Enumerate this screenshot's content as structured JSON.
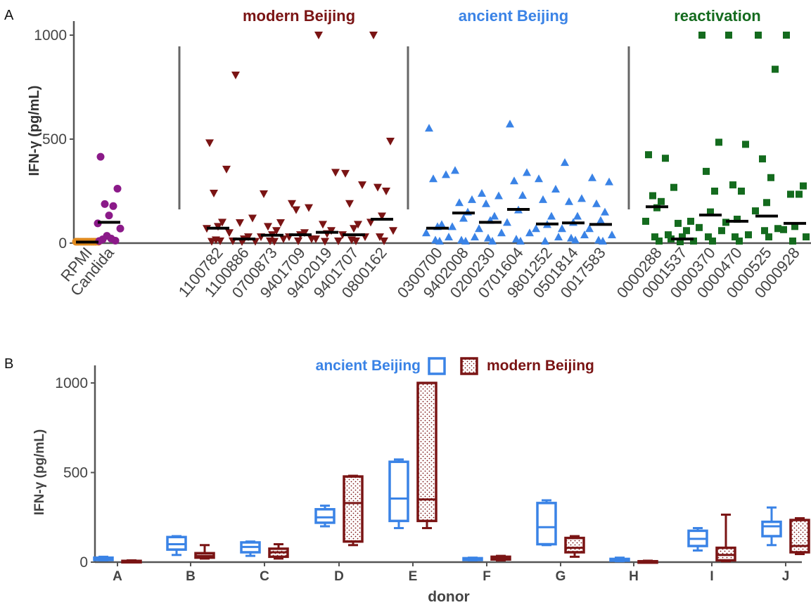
{
  "panels": {
    "a": {
      "letter": "A",
      "chart_data": {
        "type": "scatter",
        "ylabel": "IFN-γ (pg/mL)",
        "ylim": [
          0,
          1050
        ],
        "yticks": [
          0,
          500,
          1000
        ],
        "groups": [
          {
            "title": "",
            "color": "#e08a1e",
            "marker": "circle",
            "strains": [
              {
                "label": "RPMI",
                "values": [
                  5,
                  5,
                  5,
                  5,
                  5,
                  5,
                  5,
                  5,
                  5,
                  5,
                  5,
                  5
                ],
                "median": 5
              }
            ]
          },
          {
            "title": "",
            "color": "#8b1a89",
            "marker": "circle",
            "strains": [
              {
                "label": "Candida",
                "values": [
                  415,
                  262,
                  188,
                  178,
                  133,
                  95,
                  70,
                  35,
                  22,
                  18,
                  12,
                  10
                ],
                "median": 100
              }
            ]
          },
          {
            "title": "modern Beijing",
            "color": "#7a1414",
            "marker": "triangle-down",
            "strains": [
              {
                "label": "1100782",
                "values": [
                  482,
                  355,
                  240,
                  100,
                  80,
                  70,
                  50,
                  15,
                  10,
                  8
                ],
                "median": 72
              },
              {
                "label": "1100886",
                "values": [
                  808,
                  120,
                  98,
                  30,
                  20,
                  10,
                  8,
                  5
                ],
                "median": 20
              },
              {
                "label": "0700873",
                "values": [
                  237,
                  98,
                  80,
                  60,
                  40,
                  30,
                  20,
                  10,
                  8
                ],
                "median": 38
              },
              {
                "label": "9401709",
                "values": [
                  190,
                  170,
                  160,
                  50,
                  40,
                  30,
                  20,
                  10
                ],
                "median": 40
              },
              {
                "label": "9402019",
                "values": [
                  1000,
                  340,
                  90,
                  60,
                  45,
                  20,
                  10,
                  8
                ],
                "median": 52
              },
              {
                "label": "9401707",
                "values": [
                  335,
                  280,
                  190,
                  90,
                  70,
                  40,
                  30,
                  15,
                  10
                ],
                "median": 40
              },
              {
                "label": "0800162",
                "values": [
                  1000,
                  490,
                  268,
                  250,
                  130,
                  100,
                  60,
                  30,
                  10
                ],
                "median": 115
              }
            ]
          },
          {
            "title": "ancient Beijing",
            "color": "#3a83e6",
            "marker": "triangle-up",
            "strains": [
              {
                "label": "0300700",
                "values": [
                  553,
                  330,
                  310,
                  90,
                  80,
                  50,
                  30,
                  15,
                  10
                ],
                "median": 72
              },
              {
                "label": "9402008",
                "values": [
                  350,
                  210,
                  195,
                  150,
                  120,
                  80,
                  30,
                  15,
                  10
                ],
                "median": 145
              },
              {
                "label": "0200230",
                "values": [
                  240,
                  228,
                  190,
                  130,
                  110,
                  70,
                  50,
                  25,
                  10
                ],
                "median": 100
              },
              {
                "label": "0701604",
                "values": [
                  573,
                  340,
                  300,
                  230,
                  160,
                  100,
                  50,
                  20,
                  10
                ],
                "median": 162
              },
              {
                "label": "9801252",
                "values": [
                  310,
                  260,
                  210,
                  130,
                  90,
                  70,
                  30,
                  10
                ],
                "median": 92
              },
              {
                "label": "0501814",
                "values": [
                  388,
                  215,
                  200,
                  130,
                  100,
                  70,
                  40,
                  25,
                  15
                ],
                "median": 97
              },
              {
                "label": "0017583",
                "values": [
                  315,
                  295,
                  190,
                  150,
                  110,
                  70,
                  40,
                  15,
                  10
                ],
                "median": 90
              }
            ]
          },
          {
            "title": "reactivation",
            "color": "#146b1e",
            "marker": "square",
            "strains": [
              {
                "label": "0000288",
                "values": [
                  425,
                  408,
                  228,
                  200,
                  170,
                  105,
                  40,
                  30,
                  10
                ],
                "median": 175
              },
              {
                "label": "0001537",
                "values": [
                  268,
                  105,
                  95,
                  60,
                  30,
                  20,
                  10,
                  5
                ],
                "median": 20
              },
              {
                "label": "0000370",
                "values": [
                  1000,
                  485,
                  345,
                  250,
                  150,
                  75,
                  60,
                  30,
                  10
                ],
                "median": 135
              },
              {
                "label": "0000470",
                "values": [
                  1000,
                  475,
                  280,
                  250,
                  115,
                  100,
                  40,
                  30,
                  10
                ],
                "median": 105
              },
              {
                "label": "0000525",
                "values": [
                  1000,
                  836,
                  405,
                  315,
                  195,
                  155,
                  70,
                  60,
                  30
                ],
                "median": 130
              },
              {
                "label": "0000928",
                "values": [
                  1000,
                  275,
                  235,
                  235,
                  80,
                  65,
                  30,
                  10
                ],
                "median": 95
              }
            ]
          }
        ]
      }
    },
    "b": {
      "letter": "B",
      "legend": {
        "ancient": "ancient Beijing",
        "modern": "modern Beijing"
      },
      "chart_data": {
        "type": "box",
        "xlabel": "donor",
        "ylabel": "IFN-γ (pg/mL)",
        "ylim": [
          0,
          1050
        ],
        "yticks": [
          0,
          500,
          1000
        ],
        "colors": {
          "ancient": "#3a83e6",
          "modern": "#7a1414"
        },
        "donors": [
          "A",
          "B",
          "C",
          "D",
          "E",
          "F",
          "G",
          "H",
          "I",
          "J"
        ],
        "series": [
          {
            "name": "ancient Beijing",
            "key": "ancient",
            "boxes": [
              {
                "min": 10,
                "q1": 12,
                "median": 18,
                "q3": 25,
                "max": 30
              },
              {
                "min": 40,
                "q1": 70,
                "median": 100,
                "q3": 140,
                "max": 145
              },
              {
                "min": 35,
                "q1": 55,
                "median": 85,
                "q3": 110,
                "max": 115
              },
              {
                "min": 200,
                "q1": 220,
                "median": 250,
                "q3": 295,
                "max": 315
              },
              {
                "min": 190,
                "q1": 230,
                "median": 355,
                "q3": 560,
                "max": 573
              },
              {
                "min": 10,
                "q1": 12,
                "median": 18,
                "q3": 22,
                "max": 25
              },
              {
                "min": 95,
                "q1": 100,
                "median": 195,
                "q3": 330,
                "max": 345
              },
              {
                "min": 5,
                "q1": 8,
                "median": 12,
                "q3": 18,
                "max": 25
              },
              {
                "min": 65,
                "q1": 90,
                "median": 130,
                "q3": 175,
                "max": 190
              },
              {
                "min": 95,
                "q1": 145,
                "median": 200,
                "q3": 225,
                "max": 305
              }
            ]
          },
          {
            "name": "modern Beijing",
            "key": "modern",
            "boxes": [
              {
                "min": 2,
                "q1": 3,
                "median": 5,
                "q3": 7,
                "max": 10
              },
              {
                "min": 20,
                "q1": 25,
                "median": 35,
                "q3": 50,
                "max": 95
              },
              {
                "min": 20,
                "q1": 30,
                "median": 55,
                "q3": 75,
                "max": 100
              },
              {
                "min": 95,
                "q1": 115,
                "median": 330,
                "q3": 478,
                "max": 482
              },
              {
                "min": 190,
                "q1": 230,
                "median": 350,
                "q3": 1000,
                "max": 1000
              },
              {
                "min": 10,
                "q1": 15,
                "median": 22,
                "q3": 30,
                "max": 35
              },
              {
                "min": 30,
                "q1": 55,
                "median": 80,
                "q3": 135,
                "max": 145
              },
              {
                "min": 1,
                "q1": 2,
                "median": 3,
                "q3": 5,
                "max": 8
              },
              {
                "min": 5,
                "q1": 10,
                "median": 40,
                "q3": 80,
                "max": 265
              },
              {
                "min": 45,
                "q1": 55,
                "median": 90,
                "q3": 235,
                "max": 245
              }
            ]
          }
        ]
      }
    }
  }
}
